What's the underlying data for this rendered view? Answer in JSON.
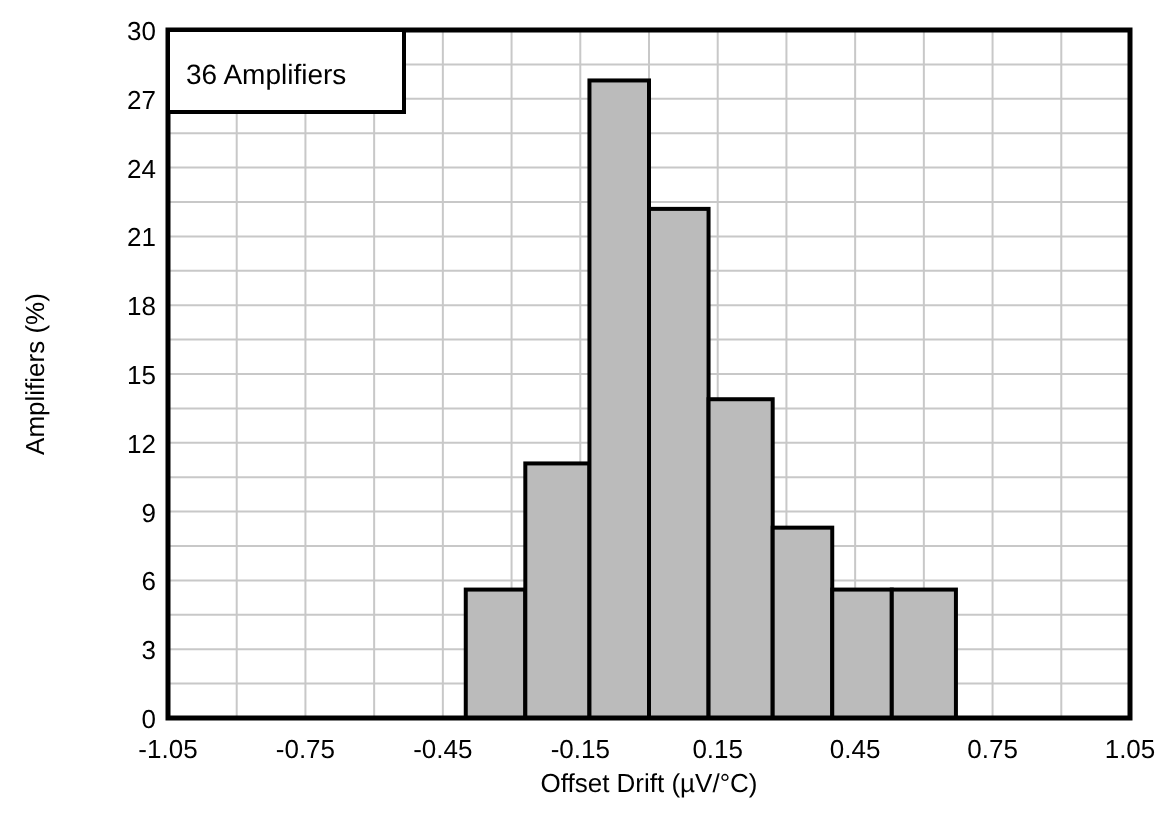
{
  "chart_data": {
    "type": "histogram",
    "xlabel": "Offset Drift (µV/°C)",
    "ylabel": "Amplifiers (%)",
    "bins": [
      -0.4,
      -0.27,
      -0.13,
      0,
      0.13,
      0.27,
      0.4,
      0.53,
      0.67
    ],
    "values": [
      5.6,
      11.1,
      27.8,
      22.2,
      13.9,
      8.3,
      5.6,
      5.6
    ],
    "color": "#bbbbbb",
    "xlim": [
      -1.05,
      1.05
    ],
    "xticks": [
      -1.05,
      {
        "value": -0.9,
        "label": null
      },
      -0.75,
      {
        "value": -0.6,
        "label": null
      },
      -0.45,
      {
        "value": -0.3,
        "label": null
      },
      -0.15,
      {
        "value": 0,
        "label": null
      },
      0.15,
      {
        "value": 0.3,
        "label": null
      },
      0.45,
      {
        "value": 0.6,
        "label": null
      },
      0.75,
      {
        "value": 0.9,
        "label": null
      },
      1.05
    ],
    "ylim": [
      0,
      30
    ],
    "yticks": [
      0,
      {
        "value": 1.5,
        "label": null
      },
      3,
      {
        "value": 4.5,
        "label": null
      },
      6,
      {
        "value": 7.5,
        "label": null
      },
      9,
      {
        "value": 10.5,
        "label": null
      },
      12,
      {
        "value": 13.5,
        "label": null
      },
      15,
      {
        "value": 16.5,
        "label": null
      },
      18,
      {
        "value": 19.5,
        "label": null
      },
      21,
      {
        "value": 22.5,
        "label": null
      },
      24,
      {
        "value": 25.5,
        "label": null
      },
      27,
      {
        "value": 28.5,
        "label": null
      },
      30
    ],
    "grid": true,
    "annotations": [
      "36 Amplifiers"
    ]
  }
}
